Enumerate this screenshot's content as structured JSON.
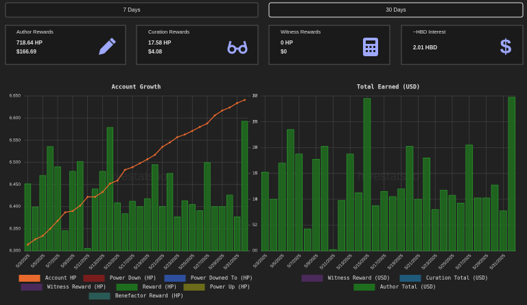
{
  "tabs": [
    "7 Days",
    "30 Days"
  ],
  "cards": [
    {
      "title": "Author Rewards",
      "lines": [
        "718.64 HP",
        "$166.69"
      ]
    },
    {
      "title": "Curation Rewards",
      "lines": [
        "17.58 HP",
        "$4.08"
      ]
    },
    {
      "title": "Witness Rewards",
      "lines": [
        "0 HP",
        "$0"
      ]
    },
    {
      "title": "~HBD Interest",
      "lines": [
        "2.01 HBD"
      ]
    }
  ],
  "chart_data": [
    {
      "type": "bar",
      "title": "Account Growth",
      "watermark": "hivestats.io",
      "categories": [
        "5/3/2025",
        null,
        "5/5/2025",
        null,
        "5/7/2025",
        null,
        "5/9/2025",
        null,
        "5/11/2025",
        null,
        "5/13/2025",
        null,
        "5/15/2025",
        null,
        "5/17/2025",
        null,
        "5/19/2025",
        null,
        "5/21/2025",
        null,
        "5/23/2025",
        null,
        "5/25/2025",
        null,
        "5/27/2025",
        null,
        "5/29/2025",
        null,
        "5/31/2025",
        null
      ],
      "series": [
        {
          "name": "Account HP",
          "color": "#e8692c",
          "kind": "line",
          "axis": "y",
          "values": [
            6.314,
            6.326,
            6.334,
            6.35,
            6.368,
            6.387,
            6.39,
            6.402,
            6.422,
            6.422,
            6.433,
            6.452,
            6.459,
            6.483,
            6.489,
            6.498,
            6.507,
            6.517,
            6.535,
            6.545,
            6.557,
            6.563,
            6.571,
            6.58,
            6.588,
            6.606,
            6.617,
            6.624,
            6.634,
            6.641
          ]
        },
        {
          "name": "Power Down (HP)",
          "color": "#7a1c1c"
        },
        {
          "name": "Power Downed To (HP)",
          "color": "#2d4f9e"
        },
        {
          "name": "Witness Reward (HP)",
          "color": "#4a2a5a"
        },
        {
          "name": "Reward (HP)",
          "color": "#1e6e1e",
          "kind": "bar",
          "axis": "y2",
          "values": [
            13.0,
            8.5,
            14.6,
            20.2,
            16.3,
            3.9,
            15.4,
            17.3,
            0.5,
            12.0,
            15.4,
            23.9,
            9.3,
            7.2,
            9.6,
            8.6,
            10.1,
            16.7,
            8.6,
            15.0,
            6.6,
            9.7,
            9.0,
            7.8,
            17.1,
            8.6,
            8.6,
            10.8,
            6.6,
            25.1
          ]
        },
        {
          "name": "Power Up (HP)",
          "color": "#6b6b1a"
        },
        {
          "name": "Benefactor Reward (HP)",
          "color": "#2a5a55"
        }
      ],
      "ylim": [
        6.3,
        6.65
      ],
      "yticks": [
        {
          "value": 6.3,
          "label": "6.300"
        },
        {
          "value": 6.35,
          "label": "6.350"
        },
        {
          "value": 6.4,
          "label": "6.400"
        },
        {
          "value": 6.45,
          "label": "6.450"
        },
        {
          "value": 6.5,
          "label": "6.500"
        },
        {
          "value": 6.55,
          "label": "6.550"
        },
        {
          "value": 6.6,
          "label": "6.600"
        },
        {
          "value": 6.65,
          "label": "6.650"
        }
      ],
      "y2lim": [
        0,
        30
      ],
      "y2ticks": [
        0,
        5,
        10,
        15,
        20,
        25,
        30
      ],
      "grid": true
    },
    {
      "type": "bar",
      "title": "Total Earned (USD)",
      "watermark": "hivestats.io",
      "categories": [
        "5/3/2025",
        null,
        "5/5/2025",
        null,
        "5/7/2025",
        null,
        "5/9/2025",
        null,
        "5/11/2025",
        null,
        "5/13/2025",
        null,
        "5/15/2025",
        null,
        "5/17/2025",
        null,
        "5/19/2025",
        null,
        "5/21/2025",
        null,
        "5/23/2025",
        null,
        "5/25/2025",
        null,
        "5/27/2025",
        null,
        "5/29/2025",
        null,
        "5/31/2025",
        null
      ],
      "series": [
        {
          "name": "Witness Reward (USD)",
          "color": "#4a2a5a"
        },
        {
          "name": "Curation Total (USD)",
          "color": "#1f5a7a"
        },
        {
          "name": "Author Total (USD)",
          "color": "#1e6e1e",
          "kind": "bar",
          "axis": "y",
          "values": [
            6.1,
            4.0,
            6.8,
            9.4,
            7.5,
            1.7,
            7.1,
            8.1,
            0.1,
            3.9,
            7.5,
            4.5,
            11.8,
            3.5,
            4.6,
            4.2,
            4.8,
            8.1,
            4.0,
            7.2,
            3.2,
            4.7,
            4.3,
            3.7,
            8.2,
            4.1,
            4.1,
            5.1,
            3.1,
            11.9
          ]
        }
      ],
      "ylim": [
        0,
        12
      ],
      "yticks": [
        0,
        2,
        4,
        6,
        8,
        10,
        12
      ],
      "grid": true
    }
  ]
}
